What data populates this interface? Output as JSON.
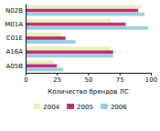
{
  "chart_data": {
    "type": "bar",
    "orientation": "horizontal",
    "categories": [
      "N02B",
      "M01A",
      "C01E",
      "A16A",
      "A05B"
    ],
    "series": [
      {
        "name": "2004",
        "color": "#eeeebb",
        "values": [
          92,
          68,
          28,
          68,
          22
        ]
      },
      {
        "name": "2005",
        "color": "#b03070",
        "values": [
          90,
          80,
          32,
          70,
          25
        ]
      },
      {
        "name": "2006",
        "color": "#99ccdd",
        "values": [
          95,
          98,
          40,
          70,
          30
        ]
      }
    ],
    "xlabel": "Количество брендов ЛС",
    "xlim": [
      0,
      100
    ],
    "xticks": [
      0,
      25,
      50,
      75,
      100
    ],
    "grid": false,
    "legend": "bottom"
  }
}
